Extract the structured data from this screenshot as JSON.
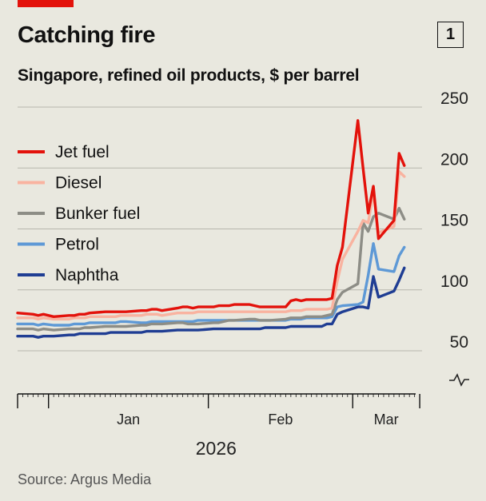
{
  "header": {
    "title": "Catching fire",
    "subtitle": "Singapore, refined oil products, $ per barrel",
    "badge": "1"
  },
  "footer": {
    "source": "Source: Argus Media"
  },
  "colors": {
    "accent": "#e3120b",
    "background": "#e9e8df",
    "gridline": "#b7b6ad",
    "axis": "#111111"
  },
  "chart_data": {
    "type": "line",
    "y_ticks": [
      50,
      100,
      150,
      200,
      250
    ],
    "ylim": [
      40,
      255
    ],
    "y_axis_break": true,
    "grid": "horizontal",
    "x_ticks": [
      "Jan",
      "Feb",
      "Mar"
    ],
    "x_year_label": "2026",
    "legend_position": "top-left",
    "x": [
      "2025-12-26",
      "2025-12-29",
      "2025-12-30",
      "2025-12-31",
      "2026-01-02",
      "2026-01-05",
      "2026-01-06",
      "2026-01-07",
      "2026-01-08",
      "2026-01-09",
      "2026-01-12",
      "2026-01-13",
      "2026-01-14",
      "2026-01-15",
      "2026-01-16",
      "2026-01-19",
      "2026-01-20",
      "2026-01-21",
      "2026-01-22",
      "2026-01-23",
      "2026-01-26",
      "2026-01-27",
      "2026-01-28",
      "2026-01-29",
      "2026-01-30",
      "2026-02-02",
      "2026-02-03",
      "2026-02-04",
      "2026-02-05",
      "2026-02-06",
      "2026-02-09",
      "2026-02-10",
      "2026-02-11",
      "2026-02-12",
      "2026-02-13",
      "2026-02-16",
      "2026-02-17",
      "2026-02-18",
      "2026-02-19",
      "2026-02-20",
      "2026-02-23",
      "2026-02-24",
      "2026-02-25",
      "2026-02-26",
      "2026-02-27",
      "2026-03-02",
      "2026-03-03",
      "2026-03-04",
      "2026-03-05",
      "2026-03-06",
      "2026-03-09",
      "2026-03-10",
      "2026-03-11",
      "2026-03-12",
      "2026-03-13"
    ],
    "series": [
      {
        "name": "Jet fuel",
        "color": "#e3120b",
        "values": [
          81,
          80,
          79,
          80,
          78,
          79,
          79,
          80,
          80,
          81,
          82,
          82,
          82,
          82,
          82,
          83,
          83,
          84,
          84,
          83,
          85,
          86,
          86,
          85,
          86,
          86,
          87,
          87,
          87,
          88,
          88,
          87,
          86,
          86,
          86,
          86,
          91,
          92,
          91,
          92,
          92,
          92,
          93,
          120,
          135,
          239,
          200,
          163,
          185,
          142,
          157,
          212,
          202,
          null,
          null
        ]
      },
      {
        "name": "Diesel",
        "color": "#f9b3a0",
        "values": [
          77,
          77,
          76,
          77,
          76,
          76,
          77,
          77,
          77,
          78,
          78,
          78,
          78,
          79,
          79,
          79,
          80,
          80,
          80,
          79,
          81,
          81,
          81,
          81,
          82,
          82,
          82,
          82,
          82,
          82,
          82,
          82,
          82,
          82,
          82,
          82,
          83,
          83,
          83,
          84,
          84,
          84,
          85,
          107,
          125,
          148,
          157,
          155,
          180,
          147,
          152,
          197,
          193,
          null,
          null
        ]
      },
      {
        "name": "Bunker fuel",
        "color": "#8d8d86",
        "values": [
          68,
          68,
          67,
          68,
          67,
          68,
          68,
          68,
          69,
          69,
          70,
          70,
          70,
          70,
          70,
          71,
          71,
          72,
          72,
          72,
          73,
          73,
          72,
          72,
          72,
          73,
          73,
          74,
          75,
          75,
          76,
          76,
          75,
          75,
          75,
          76,
          77,
          77,
          77,
          78,
          78,
          79,
          80,
          92,
          98,
          105,
          155,
          148,
          160,
          163,
          158,
          167,
          158,
          null,
          null
        ]
      },
      {
        "name": "Petrol",
        "color": "#5e99d6",
        "values": [
          72,
          72,
          71,
          72,
          71,
          71,
          72,
          72,
          72,
          73,
          73,
          73,
          73,
          74,
          74,
          73,
          73,
          74,
          74,
          74,
          74,
          74,
          74,
          74,
          75,
          75,
          75,
          75,
          75,
          75,
          75,
          75,
          75,
          75,
          75,
          75,
          76,
          76,
          76,
          77,
          77,
          77,
          78,
          86,
          87,
          88,
          90,
          112,
          138,
          117,
          115,
          128,
          135,
          null,
          null
        ]
      },
      {
        "name": "Naphtha",
        "color": "#1f3d93",
        "values": [
          62,
          62,
          61,
          62,
          62,
          63,
          63,
          64,
          64,
          64,
          64,
          65,
          65,
          65,
          65,
          65,
          66,
          66,
          66,
          66,
          67,
          67,
          67,
          67,
          67,
          68,
          68,
          68,
          68,
          68,
          68,
          68,
          68,
          69,
          69,
          69,
          70,
          70,
          70,
          70,
          70,
          72,
          72,
          80,
          82,
          86,
          86,
          85,
          111,
          94,
          99,
          108,
          118,
          null,
          null
        ]
      }
    ]
  }
}
